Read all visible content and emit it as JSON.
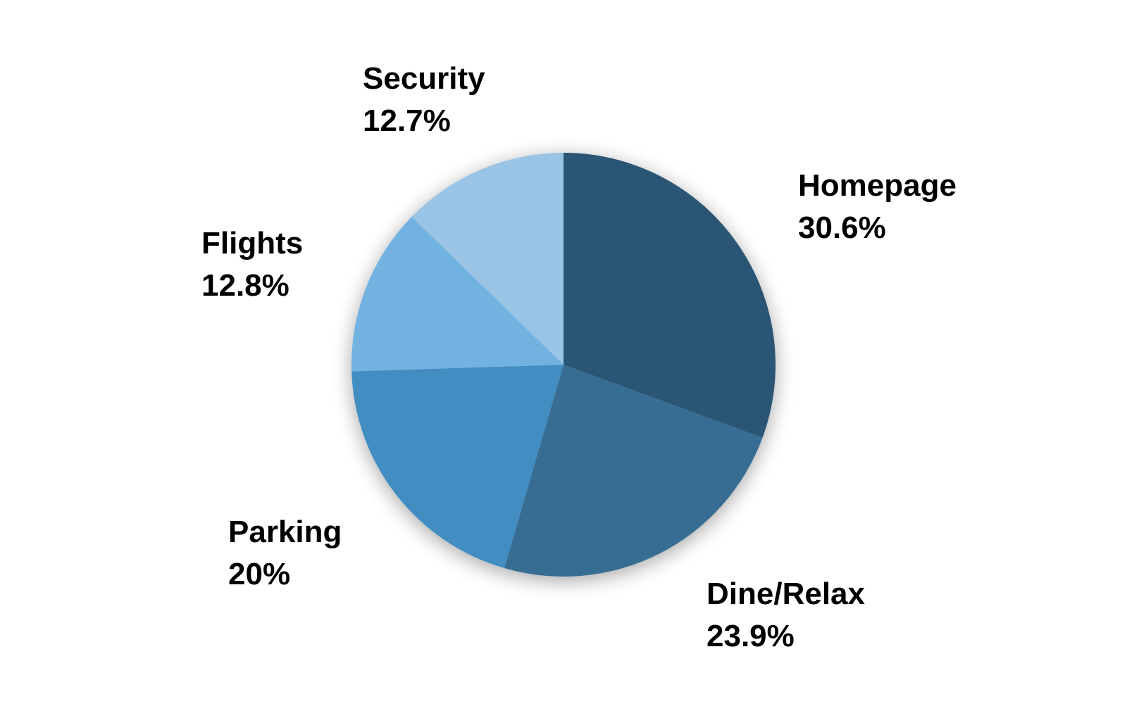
{
  "chart_data": {
    "type": "pie",
    "start_angle": "12 o'clock",
    "direction": "clockwise",
    "labels_inside_chart": false,
    "slices": [
      {
        "name": "Homepage",
        "value": 30.6,
        "value_label": "30.6%",
        "color": "#2a5574"
      },
      {
        "name": "Dine/Relax",
        "value": 23.9,
        "value_label": "23.9%",
        "color": "#376d93"
      },
      {
        "name": "Parking",
        "value": 20,
        "value_label": "20%",
        "color": "#438dc2"
      },
      {
        "name": "Flights",
        "value": 12.8,
        "value_label": "12.8%",
        "color": "#72b2e1"
      },
      {
        "name": "Security",
        "value": 12.7,
        "value_label": "12.7%",
        "color": "#99c4e6"
      }
    ]
  }
}
